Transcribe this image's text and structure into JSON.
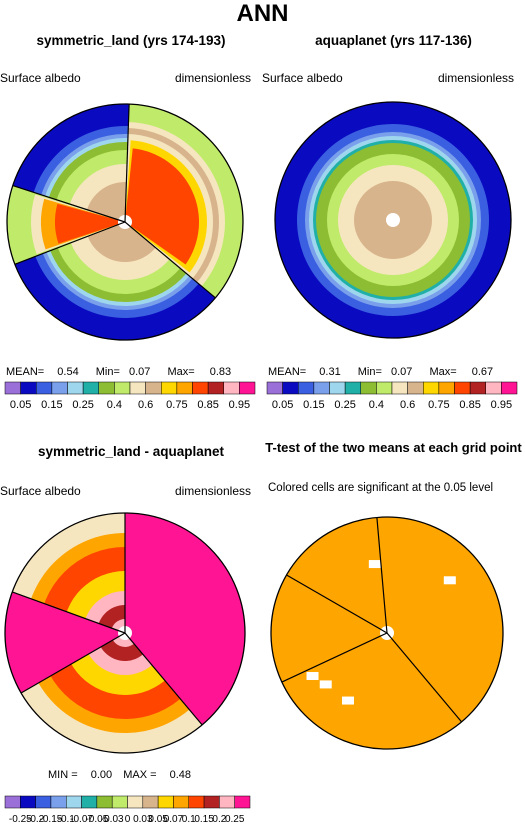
{
  "main_title": "ANN",
  "panels": [
    {
      "title": "symmetric_land (yrs 174-193)",
      "left_label": "Surface albedo",
      "right_label": "dimensionless"
    },
    {
      "title": "aquaplanet (yrs 117-136)",
      "left_label": "Surface albedo",
      "right_label": "dimensionless"
    },
    {
      "title": "symmetric_land - aquaplanet",
      "left_label": "Surface albedo",
      "right_label": "dimensionless"
    },
    {
      "title": "T-test of the two means at each grid point",
      "subtitle": "Colored cells are significant at the 0.05 level"
    }
  ],
  "stats": {
    "p1": {
      "mean_label": "MEAN=",
      "mean": "0.54",
      "min_label": "Min=",
      "min": "0.07",
      "max_label": "Max=",
      "max": "0.83"
    },
    "p2": {
      "mean_label": "MEAN=",
      "mean": "0.31",
      "min_label": "Min=",
      "min": "0.07",
      "max_label": "Max=",
      "max": "0.67"
    },
    "p3": {
      "min_label": "MIN =",
      "min": "0.00",
      "max_label": "MAX =",
      "max": "0.48"
    }
  },
  "colors": {
    "scale": [
      "#9a6fd8",
      "#0a0ac0",
      "#3a5fe0",
      "#7aa0ec",
      "#9ed6ee",
      "#20b0a8",
      "#8dbd32",
      "#c0ea6a",
      "#f5e6c0",
      "#d8b48c",
      "#ffd700",
      "#ffa500",
      "#ff4500",
      "#b22222",
      "#ffb6c1",
      "#ff1493"
    ],
    "significant": "#ffa500"
  },
  "chart_data": [
    {
      "type": "heatmap",
      "name_hint": "symmetric_land",
      "projection": "polar",
      "colorbar_levels": [
        "0.05",
        "0.1",
        "0.15",
        "0.2",
        "0.25",
        "0.3",
        "0.4",
        "0.5",
        "0.6",
        "0.7",
        "0.75",
        "0.8",
        "0.85",
        "0.9",
        "0.95"
      ],
      "colorbar_labels": [
        "0.05",
        "0.15",
        "0.25",
        "0.4",
        "0.6",
        "0.75",
        "0.85",
        "0.95"
      ],
      "mean": 0.54,
      "min": 0.07,
      "max": 0.83
    },
    {
      "type": "heatmap",
      "name_hint": "aquaplanet",
      "projection": "polar",
      "colorbar_levels": [
        "0.05",
        "0.1",
        "0.15",
        "0.2",
        "0.25",
        "0.3",
        "0.4",
        "0.5",
        "0.6",
        "0.7",
        "0.75",
        "0.8",
        "0.85",
        "0.9",
        "0.95"
      ],
      "colorbar_labels": [
        "0.05",
        "0.15",
        "0.25",
        "0.4",
        "0.6",
        "0.75",
        "0.85",
        "0.95"
      ],
      "mean": 0.31,
      "min": 0.07,
      "max": 0.67
    },
    {
      "type": "heatmap",
      "name_hint": "difference",
      "projection": "polar",
      "colorbar_labels": [
        "-0.25",
        "-0.2",
        "-0.15",
        "-0.1",
        "-0.07",
        "-0.05",
        "-0.03",
        "0",
        "0.03",
        "0.05",
        "0.07",
        "0.1",
        "0.15",
        "0.2",
        "0.25"
      ],
      "min": 0.0,
      "max": 0.48
    },
    {
      "type": "heatmap",
      "name_hint": "t-test",
      "projection": "polar",
      "legend": "Colored cells are significant at the 0.05 level"
    }
  ]
}
